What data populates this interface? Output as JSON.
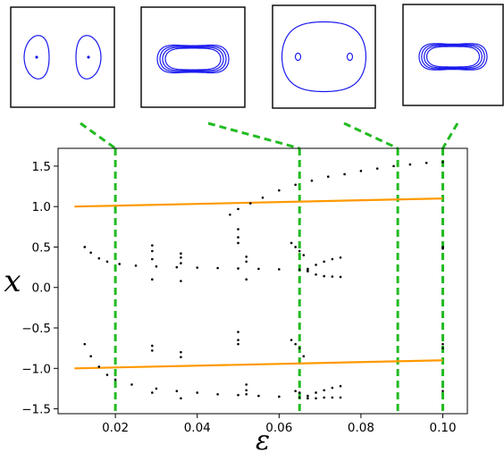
{
  "chart_data": {
    "type": "scatter",
    "title": "",
    "xlabel": "ε",
    "ylabel": "x",
    "xlim": [
      0.006,
      0.106
    ],
    "ylim": [
      -1.56,
      1.72
    ],
    "grid": false,
    "x_ticks": [
      0.02,
      0.04,
      0.06,
      0.08,
      0.1
    ],
    "x_tick_labels": [
      "0.02",
      "0.04",
      "0.06",
      "0.08",
      "0.10"
    ],
    "y_ticks": [
      -1.5,
      -1.0,
      -0.5,
      0.0,
      0.5,
      1.0,
      1.5
    ],
    "y_tick_labels": [
      "−1.5",
      "−1.0",
      "−0.5",
      "0.0",
      "0.5",
      "1.0",
      "1.5"
    ],
    "colors": {
      "equilibria": "#ff9900",
      "bifurcation_points": "#000000",
      "marker_lines": "#22bb22",
      "inset_orbits": "#1a1aee"
    },
    "series": [
      {
        "name": "",
        "style": "line",
        "color": "#ff9900",
        "points": [
          [
            0.01,
            1.0
          ],
          [
            0.1,
            1.1
          ]
        ]
      },
      {
        "name": "",
        "style": "line",
        "color": "#ff9900",
        "points": [
          [
            0.01,
            -1.0
          ],
          [
            0.1,
            -0.9
          ]
        ]
      },
      {
        "name": "",
        "style": "dots",
        "color": "#000000",
        "points": [
          [
            0.048,
            0.9
          ],
          [
            0.05,
            0.97
          ],
          [
            0.053,
            1.04
          ],
          [
            0.056,
            1.11
          ],
          [
            0.06,
            1.2
          ],
          [
            0.064,
            1.27
          ],
          [
            0.068,
            1.32
          ],
          [
            0.072,
            1.37
          ],
          [
            0.076,
            1.4
          ],
          [
            0.08,
            1.44
          ],
          [
            0.084,
            1.47
          ],
          [
            0.088,
            1.5
          ],
          [
            0.092,
            1.52
          ],
          [
            0.096,
            1.54
          ],
          [
            0.1,
            1.55
          ]
        ]
      },
      {
        "name": "",
        "style": "dots",
        "color": "#000000",
        "points": [
          [
            0.0125,
            0.5
          ],
          [
            0.014,
            0.43
          ],
          [
            0.016,
            0.36
          ],
          [
            0.018,
            0.32
          ],
          [
            0.021,
            0.29
          ],
          [
            0.025,
            0.27
          ],
          [
            0.03,
            0.26
          ],
          [
            0.035,
            0.25
          ],
          [
            0.04,
            0.245
          ],
          [
            0.045,
            0.24
          ],
          [
            0.05,
            0.235
          ],
          [
            0.055,
            0.23
          ],
          [
            0.06,
            0.225
          ],
          [
            0.065,
            0.22
          ],
          [
            0.067,
            0.21
          ]
        ]
      },
      {
        "name": "",
        "style": "dots",
        "color": "#000000",
        "points": [
          [
            0.067,
            0.23
          ],
          [
            0.069,
            0.28
          ],
          [
            0.071,
            0.32
          ],
          [
            0.073,
            0.35
          ],
          [
            0.075,
            0.37
          ],
          [
            0.067,
            0.2
          ],
          [
            0.069,
            0.16
          ],
          [
            0.071,
            0.14
          ],
          [
            0.073,
            0.135
          ],
          [
            0.075,
            0.13
          ]
        ]
      },
      {
        "name": "",
        "style": "dots",
        "color": "#000000",
        "points": [
          [
            0.0125,
            -0.7
          ],
          [
            0.014,
            -0.85
          ],
          [
            0.016,
            -0.98
          ],
          [
            0.018,
            -1.08
          ],
          [
            0.02,
            -1.14
          ],
          [
            0.024,
            -1.2
          ],
          [
            0.03,
            -1.25
          ],
          [
            0.035,
            -1.28
          ],
          [
            0.04,
            -1.3
          ],
          [
            0.045,
            -1.32
          ],
          [
            0.05,
            -1.33
          ],
          [
            0.055,
            -1.34
          ],
          [
            0.06,
            -1.35
          ],
          [
            0.065,
            -1.36
          ],
          [
            0.067,
            -1.37
          ]
        ]
      },
      {
        "name": "",
        "style": "dots",
        "color": "#000000",
        "points": [
          [
            0.067,
            -1.34
          ],
          [
            0.069,
            -1.3
          ],
          [
            0.071,
            -1.27
          ],
          [
            0.073,
            -1.24
          ],
          [
            0.075,
            -1.22
          ],
          [
            0.067,
            -1.37
          ],
          [
            0.069,
            -1.37
          ],
          [
            0.071,
            -1.36
          ],
          [
            0.073,
            -1.36
          ],
          [
            0.075,
            -1.36
          ]
        ]
      },
      {
        "name": "",
        "style": "dots",
        "color": "#000000",
        "points": [
          [
            0.029,
            0.52
          ],
          [
            0.029,
            0.45
          ],
          [
            0.029,
            0.35
          ],
          [
            0.029,
            0.1
          ],
          [
            0.036,
            0.42
          ],
          [
            0.036,
            0.37
          ],
          [
            0.036,
            0.3
          ],
          [
            0.036,
            0.08
          ],
          [
            0.029,
            -0.72
          ],
          [
            0.029,
            -0.78
          ],
          [
            0.029,
            -1.3
          ],
          [
            0.036,
            -0.8
          ],
          [
            0.036,
            -0.86
          ],
          [
            0.036,
            -1.37
          ],
          [
            0.05,
            0.72
          ],
          [
            0.05,
            0.62
          ],
          [
            0.05,
            0.55
          ],
          [
            0.05,
            -0.55
          ],
          [
            0.05,
            -0.65
          ],
          [
            0.05,
            -0.7
          ],
          [
            0.052,
            0.32
          ],
          [
            0.052,
            0.38
          ],
          [
            0.052,
            0.1
          ],
          [
            0.052,
            -1.2
          ],
          [
            0.052,
            -1.27
          ],
          [
            0.052,
            -1.32
          ],
          [
            0.063,
            0.55
          ],
          [
            0.064,
            0.5
          ],
          [
            0.065,
            0.45
          ],
          [
            0.066,
            0.4
          ],
          [
            0.063,
            -0.65
          ],
          [
            0.064,
            -0.7
          ],
          [
            0.065,
            -0.75
          ],
          [
            0.066,
            -0.85
          ],
          [
            0.064,
            -1.28
          ],
          [
            0.065,
            -1.3
          ],
          [
            0.1,
            0.5
          ],
          [
            0.1,
            0.48
          ],
          [
            0.1,
            -0.7
          ],
          [
            0.1,
            -0.75
          ],
          [
            0.1,
            -1.28
          ]
        ]
      }
    ],
    "marker_epsilons": [
      0.02,
      0.065,
      0.089,
      0.1
    ]
  },
  "insets": [
    {
      "shape": "two-separate-loops",
      "fixed_points": 2
    },
    {
      "shape": "peanut-nested",
      "fixed_points": 0
    },
    {
      "shape": "enclosing-loop-with-two-islands",
      "fixed_points": 0
    },
    {
      "shape": "peanut-nested",
      "fixed_points": 0
    }
  ]
}
